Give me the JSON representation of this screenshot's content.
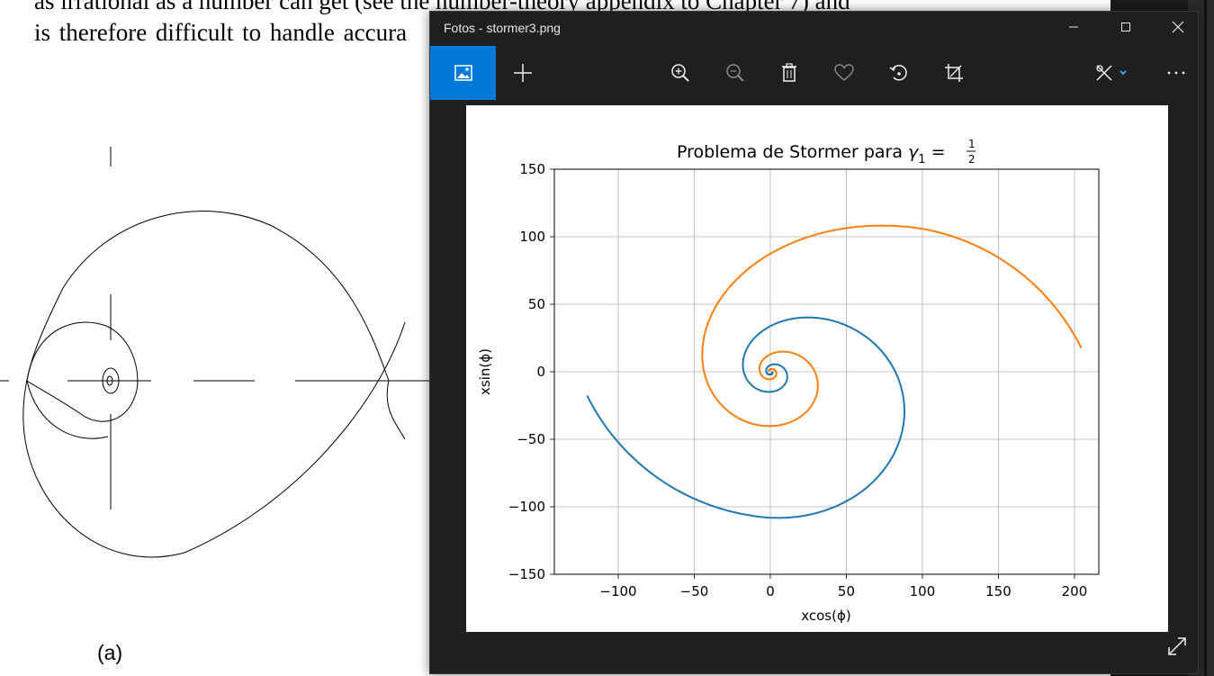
{
  "document": {
    "line1": "as irrational as a number can get (see the number-theory appendix to Chapter 7) and",
    "line2": "is therefore difficult to handle accura",
    "caption": "(a)"
  },
  "window": {
    "title": "Fotos - stormer3.png",
    "controls": {
      "minimize_icon": "minimize-icon",
      "maximize_icon": "maximize-icon",
      "close_icon": "close-icon"
    }
  },
  "toolbar": {
    "items": [
      "image-view-icon",
      "add-icon",
      "zoom-in-icon",
      "zoom-out-icon",
      "delete-icon",
      "favorite-icon",
      "rotate-icon",
      "crop-icon",
      "edit-icon",
      "more-icon"
    ]
  },
  "colors": {
    "accent": "#0078d7",
    "series1": "#1f77b4",
    "series2": "#ff7f0e",
    "window_bg": "#1f1f1f"
  },
  "chart_data": {
    "type": "line",
    "title": "Problema de Stormer para ",
    "title_math": "γ₁ = 1/2",
    "title_gamma": "γ",
    "title_sub": "1",
    "title_eq": " =",
    "title_num": "1",
    "title_den": "2",
    "xlabel": "xcos(ϕ)",
    "ylabel": "xsin(ϕ)",
    "xlim": [
      -142,
      216
    ],
    "ylim": [
      -150,
      150
    ],
    "xticks": [
      -100,
      -50,
      0,
      50,
      100,
      150,
      200
    ],
    "yticks": [
      -150,
      -100,
      -50,
      0,
      50,
      100,
      150
    ],
    "xtick_labels": [
      "−100",
      "−50",
      "0",
      "50",
      "100",
      "150",
      "200"
    ],
    "ytick_labels": [
      "−150",
      "−100",
      "−50",
      "0",
      "50",
      "100",
      "150"
    ],
    "grid": true,
    "series": [
      {
        "color": "#1f77b4",
        "points": [
          [
            0,
            0
          ],
          [
            -2,
            1
          ],
          [
            -3,
            2
          ],
          [
            -2,
            4
          ],
          [
            2,
            5
          ],
          [
            9,
            4
          ],
          [
            14,
            0
          ],
          [
            15,
            -5
          ],
          [
            13,
            -8
          ],
          [
            7,
            -9
          ],
          [
            3,
            -7
          ],
          [
            0,
            -3
          ],
          [
            0,
            0
          ],
          [
            3,
            2
          ],
          [
            11,
            4
          ],
          [
            16,
            -1
          ],
          [
            17,
            -5
          ],
          [
            15,
            -10
          ],
          [
            8,
            -14
          ],
          [
            0,
            -12
          ],
          [
            -4,
            -8
          ],
          [
            -6,
            -3
          ]
        ]
      },
      {
        "color": "#ff7f0e",
        "points": [
          [
            0,
            0
          ],
          [
            1,
            -1
          ],
          [
            2,
            -2
          ],
          [
            4,
            -1
          ],
          [
            3,
            1
          ],
          [
            0,
            2
          ],
          [
            -2,
            1
          ],
          [
            -2,
            -1
          ]
        ]
      }
    ]
  }
}
